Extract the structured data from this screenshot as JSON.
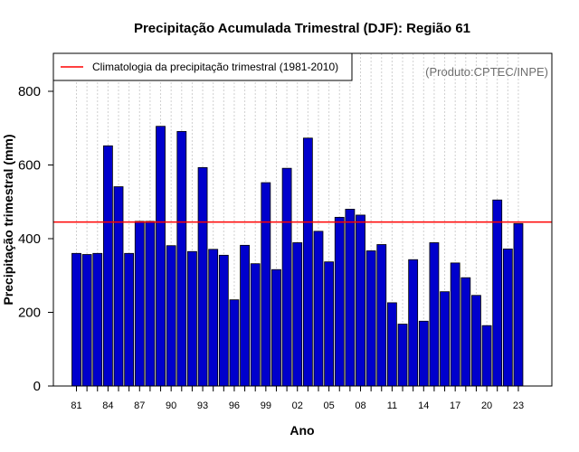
{
  "chart_data": {
    "type": "bar",
    "title": "Precipitação Acumulada Trimestral (DJF): Região 61",
    "xlabel": "Ano",
    "ylabel": "Precipitação trimestral (mm)",
    "credit": "(Produto:CPTEC/INPE)",
    "ylim": [
      0,
      900
    ],
    "yticks": [
      "0",
      "200",
      "400",
      "600",
      "800"
    ],
    "xtick_labels": [
      "81",
      "84",
      "87",
      "90",
      "93",
      "96",
      "99",
      "02",
      "05",
      "08",
      "11",
      "14",
      "17",
      "20",
      "23"
    ],
    "categories": [
      "1981",
      "1982",
      "1983",
      "1984",
      "1985",
      "1986",
      "1987",
      "1988",
      "1989",
      "1990",
      "1991",
      "1992",
      "1993",
      "1994",
      "1995",
      "1996",
      "1997",
      "1998",
      "1999",
      "2000",
      "2001",
      "2002",
      "2003",
      "2004",
      "2005",
      "2006",
      "2007",
      "2008",
      "2009",
      "2010",
      "2011",
      "2012",
      "2013",
      "2014",
      "2015",
      "2016",
      "2017",
      "2018",
      "2019",
      "2020",
      "2021",
      "2022",
      "2023"
    ],
    "values": [
      360,
      357,
      360,
      652,
      541,
      360,
      447,
      447,
      705,
      381,
      691,
      365,
      593,
      371,
      355,
      234,
      382,
      332,
      552,
      316,
      591,
      389,
      673,
      420,
      337,
      458,
      480,
      464,
      367,
      384,
      226,
      168,
      343,
      176,
      389,
      256,
      334,
      294,
      246,
      164,
      505,
      372,
      441
    ],
    "climatology": {
      "label": "Climatologia da precipitação trimestral (1981-2010)",
      "value": 445
    },
    "colors": {
      "bar": "#0000cc",
      "line": "#ff0000",
      "grid": "#d0d0d0"
    }
  }
}
